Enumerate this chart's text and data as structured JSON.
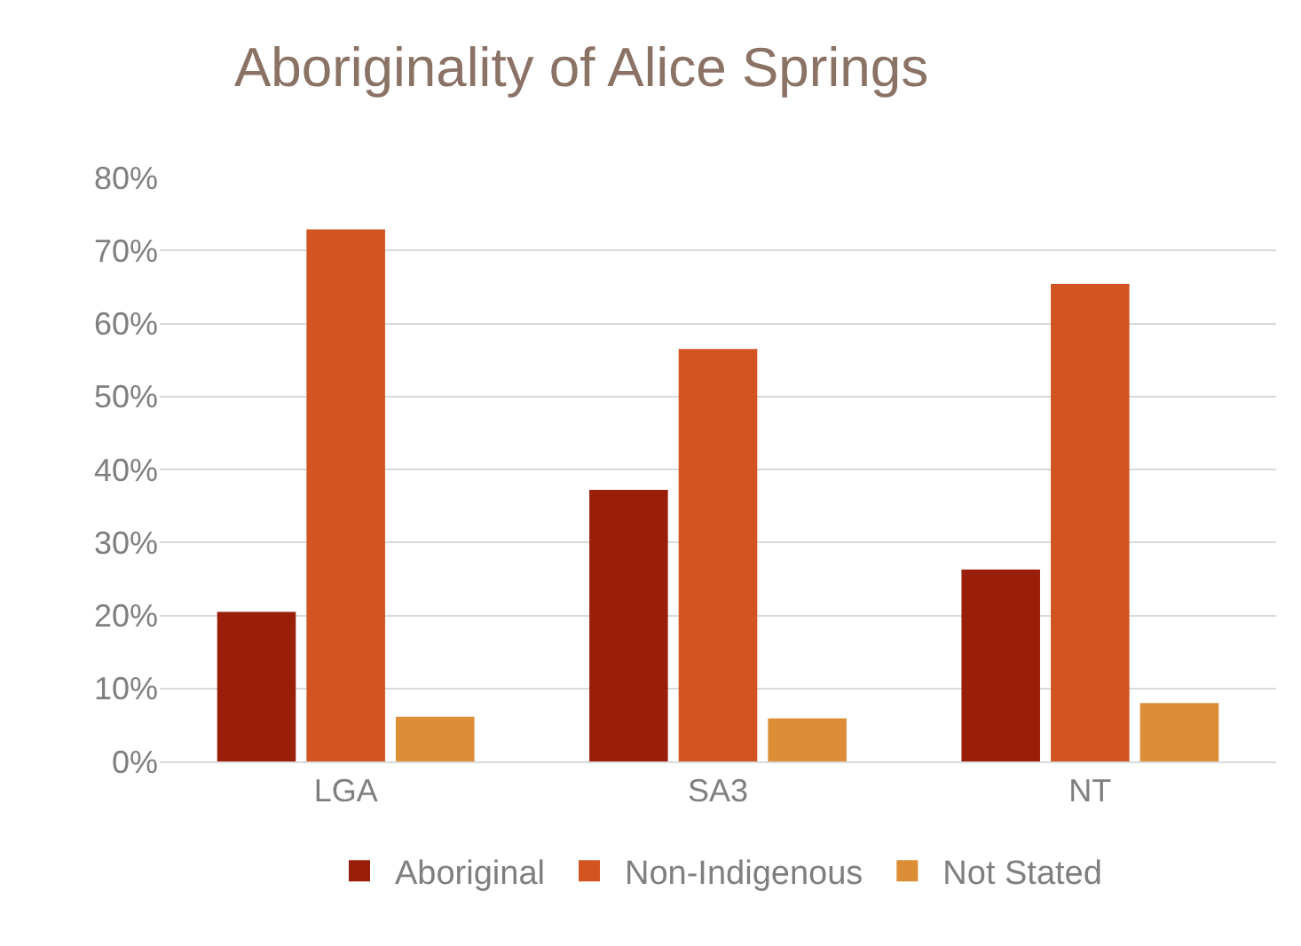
{
  "chart_data": {
    "type": "bar",
    "title": "Aboriginality of Alice Springs",
    "categories": [
      "LGA",
      "SA3",
      "NT"
    ],
    "series": [
      {
        "name": "Aboriginal",
        "color": "#9a1f0a",
        "values": [
          20.5,
          37.2,
          26.3
        ]
      },
      {
        "name": "Non-Indigenous",
        "color": "#d25420",
        "values": [
          72.9,
          56.5,
          65.4
        ]
      },
      {
        "name": "Not Stated",
        "color": "#dd8d35",
        "values": [
          6.1,
          5.9,
          8.0
        ]
      }
    ],
    "ylim": [
      0,
      80
    ],
    "yticks": [
      {
        "value": 0,
        "label": "0%"
      },
      {
        "value": 10,
        "label": "10%"
      },
      {
        "value": 20,
        "label": "20%"
      },
      {
        "value": 30,
        "label": "30%"
      },
      {
        "value": 40,
        "label": "40%"
      },
      {
        "value": 50,
        "label": "50%"
      },
      {
        "value": 60,
        "label": "60%"
      },
      {
        "value": 70,
        "label": "70%"
      },
      {
        "value": 80,
        "label": "80%"
      }
    ],
    "grid": "y",
    "legend": "bottom"
  }
}
